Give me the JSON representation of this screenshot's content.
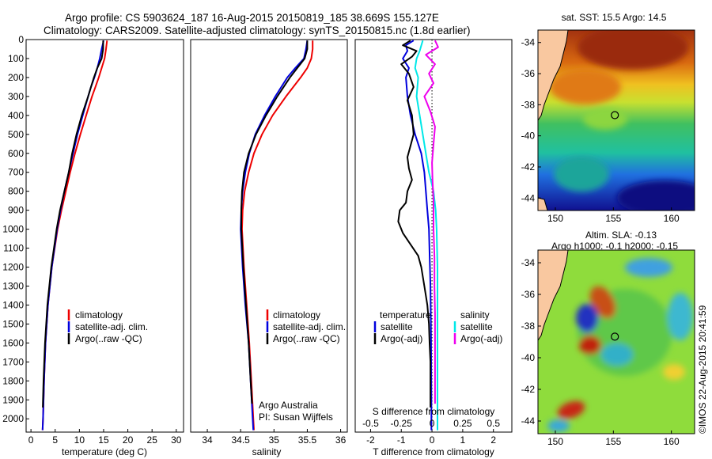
{
  "header": {
    "line1": "Argo profile: CS 5903624_187 16-Aug-2015 20150819_185 38.669S 155.127E",
    "line2": "Climatology: CARS2009. Satellite-adjusted climatology: synTS_20150815.nc (1.8d earlier)"
  },
  "footer": {
    "institution": "Argo Australia",
    "pi": "PI: Susan Wijffels",
    "stamp": "©IMOS 22-Aug-2015 20:41:59"
  },
  "chart_data": [
    {
      "id": "temperature",
      "type": "line",
      "xlabel": "temperature (deg C)",
      "xlim": [
        -1,
        31.5
      ],
      "ylim": [
        2070,
        0
      ],
      "xticks": [
        0,
        5,
        10,
        15,
        20,
        25,
        30
      ],
      "yticks": [
        0,
        100,
        200,
        300,
        400,
        500,
        600,
        700,
        800,
        900,
        1000,
        1100,
        1200,
        1300,
        1400,
        1500,
        1600,
        1700,
        1800,
        1900,
        2000
      ],
      "legend": {
        "location": "lower-center",
        "entries": [
          "climatology",
          "satellite-adj. clim.",
          "Argo(..raw -QC)"
        ]
      },
      "series": [
        {
          "name": "climatology",
          "color": "#ee0000",
          "depth": [
            5,
            50,
            100,
            150,
            200,
            250,
            300,
            400,
            500,
            600,
            700,
            800,
            900,
            1000,
            1200,
            1400,
            1600,
            1800,
            2000,
            2060
          ],
          "values": [
            15.7,
            15.5,
            15.2,
            14.6,
            14.0,
            13.3,
            12.6,
            11.4,
            10.2,
            9.1,
            8.1,
            7.2,
            6.3,
            5.5,
            4.3,
            3.5,
            3.0,
            2.7,
            2.5,
            2.4
          ]
        },
        {
          "name": "satellite-adj. clim.",
          "color": "#0000dd",
          "depth": [
            5,
            50,
            100,
            150,
            200,
            250,
            300,
            400,
            500,
            600,
            700,
            800,
            900,
            1000,
            1200,
            1400,
            1600,
            1800,
            2000,
            2060
          ],
          "values": [
            15.0,
            14.6,
            14.2,
            13.7,
            13.1,
            12.4,
            11.8,
            10.7,
            9.6,
            8.7,
            7.8,
            6.9,
            6.1,
            5.4,
            4.3,
            3.5,
            3.0,
            2.7,
            2.5,
            2.4
          ]
        },
        {
          "name": "Argo(..raw -QC)",
          "color": "#000000",
          "depth": [
            5,
            50,
            100,
            150,
            200,
            250,
            300,
            400,
            500,
            600,
            700,
            800,
            900,
            1000,
            1200,
            1400,
            1600,
            1800,
            1940
          ],
          "values": [
            14.9,
            14.9,
            14.6,
            13.7,
            13.0,
            12.4,
            11.8,
            10.5,
            9.4,
            8.5,
            7.8,
            6.9,
            6.0,
            5.3,
            4.2,
            3.4,
            2.9,
            2.6,
            2.45
          ]
        }
      ]
    },
    {
      "id": "salinity",
      "type": "line",
      "xlabel": "salinity",
      "xlim": [
        33.75,
        36.1
      ],
      "ylim": [
        2070,
        0
      ],
      "xticks": [
        34,
        34.5,
        35,
        35.5,
        36
      ],
      "legend": {
        "location": "lower-center",
        "entries": [
          "climatology",
          "satellite-adj. clim.",
          "Argo(..raw -QC)"
        ]
      },
      "series": [
        {
          "name": "climatology",
          "color": "#ee0000",
          "depth": [
            5,
            50,
            100,
            150,
            200,
            300,
            400,
            500,
            600,
            700,
            800,
            900,
            1000,
            1200,
            1400,
            1600,
            1800,
            2000,
            2060
          ],
          "values": [
            35.58,
            35.58,
            35.56,
            35.5,
            35.4,
            35.18,
            34.98,
            34.82,
            34.7,
            34.62,
            34.56,
            34.53,
            34.52,
            34.55,
            34.59,
            34.63,
            34.66,
            34.69,
            34.7
          ]
        },
        {
          "name": "satellite-adj. clim.",
          "color": "#0000dd",
          "depth": [
            5,
            50,
            100,
            150,
            200,
            300,
            400,
            500,
            600,
            700,
            800,
            900,
            1000,
            1200,
            1400,
            1600,
            1800,
            2000,
            2060
          ],
          "values": [
            35.5,
            35.48,
            35.45,
            35.32,
            35.2,
            35.02,
            34.86,
            34.72,
            34.63,
            34.57,
            34.53,
            34.51,
            34.5,
            34.53,
            34.57,
            34.62,
            34.65,
            34.68,
            34.69
          ]
        },
        {
          "name": "Argo(..raw -QC)",
          "color": "#000000",
          "depth": [
            5,
            50,
            100,
            150,
            200,
            300,
            400,
            500,
            600,
            700,
            800,
            900,
            1000,
            1200,
            1400,
            1600,
            1800,
            1920
          ],
          "values": [
            35.5,
            35.5,
            35.46,
            35.35,
            35.24,
            35.05,
            34.88,
            34.73,
            34.62,
            34.55,
            34.52,
            34.51,
            34.51,
            34.54,
            34.58,
            34.62,
            34.65,
            34.67
          ]
        }
      ]
    },
    {
      "id": "difference",
      "type": "line",
      "xlabel": "T difference from climatology",
      "xlabel_top": "S difference from climatology",
      "xlim": [
        -2.5,
        2.6
      ],
      "ylim": [
        2070,
        0
      ],
      "xticks": [
        -2,
        -1,
        0,
        1,
        2
      ],
      "s_ticks": {
        "labels": [
          "-0.5",
          "-0.25",
          "0",
          "0.25",
          "0.5"
        ],
        "positions_T": [
          -2,
          -1,
          0,
          1,
          2
        ]
      },
      "zero_line": 0,
      "legend": {
        "location": "lower-center",
        "headers": [
          "temperature",
          "salinity"
        ],
        "entries": [
          "satellite",
          "Argo(-adj)",
          "satellite",
          "Argo(-adj)"
        ]
      },
      "series": [
        {
          "name": "temperature satellite",
          "color": "#0000dd",
          "depth": [
            5,
            30,
            60,
            100,
            150,
            200,
            300,
            400,
            500,
            600,
            700,
            800,
            900,
            1000,
            1300,
            1600,
            1900,
            2000,
            2060
          ],
          "values": [
            -0.6,
            -0.85,
            -0.8,
            -0.95,
            -0.75,
            -0.85,
            -0.8,
            -0.7,
            -0.55,
            -0.35,
            -0.25,
            -0.2,
            -0.15,
            -0.1,
            -0.05,
            -0.03,
            -0.02,
            -0.02,
            -0.02
          ]
        },
        {
          "name": "temperature Argo(-adj)",
          "color": "#000000",
          "depth": [
            5,
            30,
            60,
            90,
            130,
            180,
            250,
            320,
            400,
            500,
            560,
            620,
            680,
            740,
            800,
            860,
            900,
            960,
            1020,
            1080,
            1140,
            1200,
            1300,
            1400,
            1500,
            1600,
            1700,
            1800,
            1940
          ],
          "values": [
            -0.7,
            -0.95,
            -0.5,
            -0.65,
            -1.0,
            -0.75,
            -0.6,
            -0.8,
            -0.65,
            -0.6,
            -0.7,
            -0.8,
            -0.75,
            -0.65,
            -0.8,
            -0.85,
            -1.05,
            -1.1,
            -0.95,
            -0.7,
            -0.45,
            -0.35,
            -0.25,
            -0.15,
            -0.1,
            -0.08,
            -0.05,
            -0.05,
            -0.05
          ]
        },
        {
          "name": "salinity satellite",
          "color": "#00e8e8",
          "depth": [
            5,
            60,
            100,
            150,
            200,
            300,
            400,
            500,
            600,
            700,
            800,
            900,
            1000,
            1200,
            1400,
            1600,
            1800,
            2000,
            2060
          ],
          "values": [
            -0.3,
            -0.4,
            -0.5,
            -0.55,
            -0.45,
            -0.5,
            -0.4,
            -0.3,
            -0.2,
            -0.1,
            0.05,
            0.12,
            0.15,
            0.18,
            0.18,
            0.18,
            0.18,
            0.18,
            0.18
          ]
        },
        {
          "name": "salinity Argo(-adj)",
          "color": "#ee00ee",
          "depth": [
            5,
            40,
            80,
            130,
            180,
            230,
            300,
            380,
            460,
            550,
            650,
            750,
            850,
            1000,
            1150,
            1300,
            1450,
            1600,
            1800,
            1920
          ],
          "values": [
            0.1,
            0.2,
            -0.2,
            0.1,
            -0.1,
            0.05,
            -0.25,
            -0.05,
            0.1,
            0.05,
            0.0,
            0.02,
            0.05,
            0.05,
            0.08,
            0.08,
            0.1,
            0.1,
            0.1,
            0.1
          ]
        }
      ]
    },
    {
      "id": "sst_map",
      "type": "heatmap",
      "title": "sat. SST: 15.5 Argo: 14.5",
      "xlim": [
        148.5,
        162
      ],
      "ylim": [
        -44.8,
        -33.2
      ],
      "xticks": [
        150,
        155,
        160
      ],
      "yticks": [
        -34,
        -36,
        -38,
        -40,
        -42,
        -44
      ],
      "argo_position": {
        "lon": 155.127,
        "lat": -38.669
      }
    },
    {
      "id": "sla_map",
      "type": "heatmap",
      "title": "Altim. SLA: -0.13",
      "subtitle": "Argo h1000: -0.1 h2000: -0.15",
      "xlim": [
        148.5,
        162
      ],
      "ylim": [
        -44.8,
        -33.2
      ],
      "xticks": [
        150,
        155,
        160
      ],
      "yticks": [
        -34,
        -36,
        -38,
        -40,
        -42,
        -44
      ],
      "argo_position": {
        "lon": 155.127,
        "lat": -38.669
      }
    }
  ],
  "colors": {
    "land": "#f9c8a0",
    "frame": "#000000"
  }
}
